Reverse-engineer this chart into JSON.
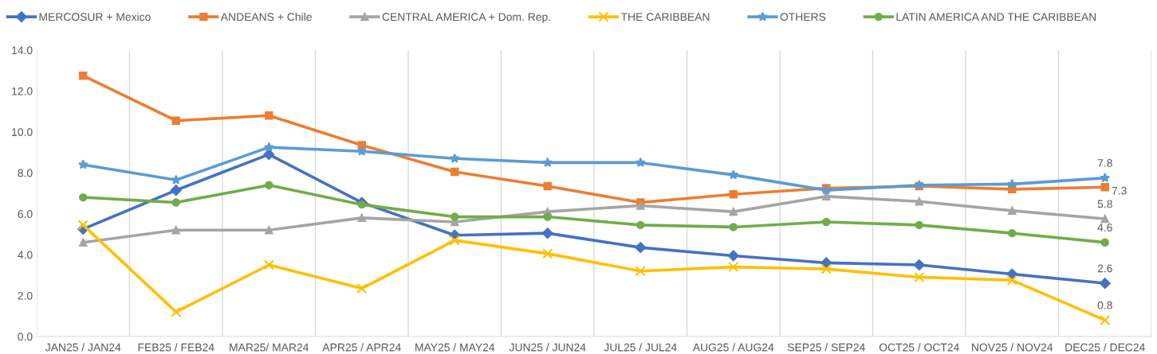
{
  "chart_data": {
    "type": "line",
    "categories": [
      "JAN25 / JAN24",
      "FEB25 / FEB24",
      "MAR25/ MAR24",
      "APR25 / APR24",
      "MAY25 / MAY24",
      "JUN25 / JUN24",
      "JUL25 / JUL24",
      "AUG25 / AUG24",
      "SEP25 / SEP24",
      "OCT25 / OCT24",
      "NOV25 / NOV24",
      "DEC25 / DEC24"
    ],
    "series": [
      {
        "name": "MERCOSUR + Mexico",
        "color": "#4472c4",
        "marker": "diamond",
        "values": [
          5.25,
          7.15,
          8.9,
          6.55,
          4.95,
          5.05,
          4.35,
          3.95,
          3.6,
          3.5,
          3.05,
          2.6
        ],
        "value_labels": [
          null,
          null,
          null,
          null,
          null,
          null,
          null,
          null,
          null,
          null,
          null,
          "2.6"
        ]
      },
      {
        "name": "ANDEANS + Chile",
        "color": "#ed7d31",
        "marker": "square",
        "values": [
          12.75,
          10.55,
          10.8,
          9.35,
          8.05,
          7.35,
          6.55,
          6.95,
          7.25,
          7.35,
          7.2,
          7.3
        ],
        "value_labels": [
          null,
          null,
          null,
          null,
          null,
          null,
          null,
          null,
          null,
          null,
          null,
          "7.3"
        ]
      },
      {
        "name": "CENTRAL AMERICA + Dom. Rep.",
        "color": "#a5a5a5",
        "marker": "triangle",
        "values": [
          4.6,
          5.2,
          5.2,
          5.8,
          5.6,
          6.1,
          6.4,
          6.1,
          6.85,
          6.6,
          6.15,
          5.75
        ],
        "value_labels": [
          null,
          null,
          null,
          null,
          null,
          null,
          null,
          null,
          null,
          null,
          null,
          "5.8"
        ]
      },
      {
        "name": "THE CARIBBEAN",
        "color": "#ffc000",
        "marker": "cross",
        "values": [
          5.45,
          1.2,
          3.5,
          2.35,
          4.7,
          4.05,
          3.2,
          3.4,
          3.3,
          2.9,
          2.75,
          0.8
        ],
        "value_labels": [
          null,
          null,
          null,
          null,
          null,
          null,
          null,
          null,
          null,
          null,
          null,
          "0.8"
        ]
      },
      {
        "name": "OTHERS",
        "color": "#5b9bd5",
        "marker": "star",
        "values": [
          8.4,
          7.65,
          9.25,
          9.05,
          8.7,
          8.5,
          8.5,
          7.9,
          7.15,
          7.4,
          7.45,
          7.75
        ],
        "value_labels": [
          null,
          null,
          null,
          null,
          null,
          null,
          null,
          null,
          null,
          null,
          null,
          "7.8"
        ]
      },
      {
        "name": "LATIN AMERICA AND THE CARIBBEAN",
        "color": "#70ad47",
        "marker": "circle",
        "values": [
          6.8,
          6.55,
          7.4,
          6.45,
          5.85,
          5.85,
          5.45,
          5.35,
          5.6,
          5.45,
          5.05,
          4.6
        ],
        "value_labels": [
          null,
          null,
          null,
          null,
          null,
          null,
          null,
          null,
          null,
          null,
          null,
          "4.6"
        ]
      }
    ],
    "ylim": [
      0,
      14
    ],
    "yticks": [
      {
        "value": 0,
        "label": "0.0"
      },
      {
        "value": 2,
        "label": "2.0"
      },
      {
        "value": 4,
        "label": "4.0"
      },
      {
        "value": 6,
        "label": "6.0"
      },
      {
        "value": 8,
        "label": "8.0"
      },
      {
        "value": 10,
        "label": "10.0"
      },
      {
        "value": 12,
        "label": "12.0"
      },
      {
        "value": 14,
        "label": "14.0"
      }
    ],
    "grid": "x",
    "legend": "top",
    "line_style": "solid"
  }
}
